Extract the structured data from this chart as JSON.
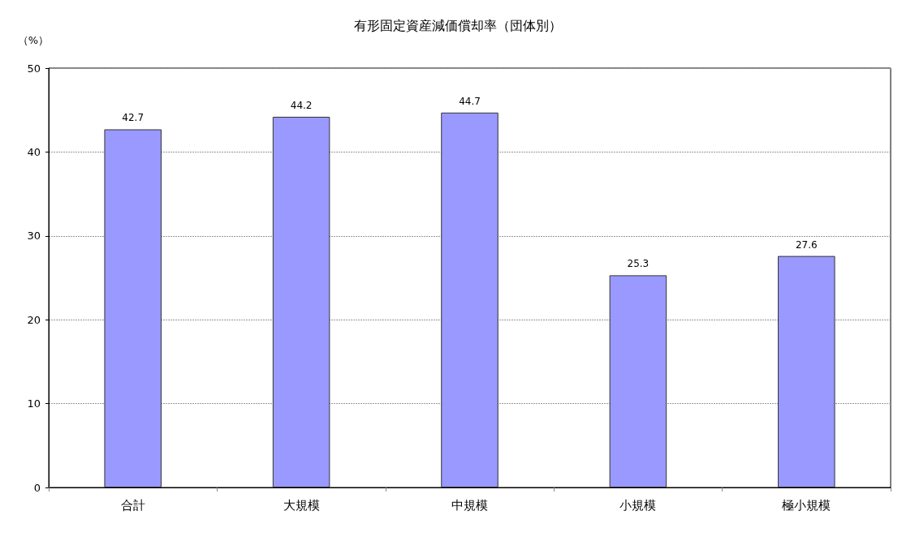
{
  "chart_data": {
    "type": "bar",
    "title": "有形固定資産減価償却率（団体別）",
    "ylabel": "（%）",
    "categories": [
      "合計",
      "大規模",
      "中規模",
      "小規模",
      "極小規模"
    ],
    "values": [
      42.7,
      44.2,
      44.7,
      25.3,
      27.6
    ],
    "color": "#9999ff",
    "ylim": [
      0,
      50
    ],
    "yticks": [
      0,
      10,
      20,
      30,
      40,
      50
    ],
    "grid": "y",
    "data_labels": true
  }
}
